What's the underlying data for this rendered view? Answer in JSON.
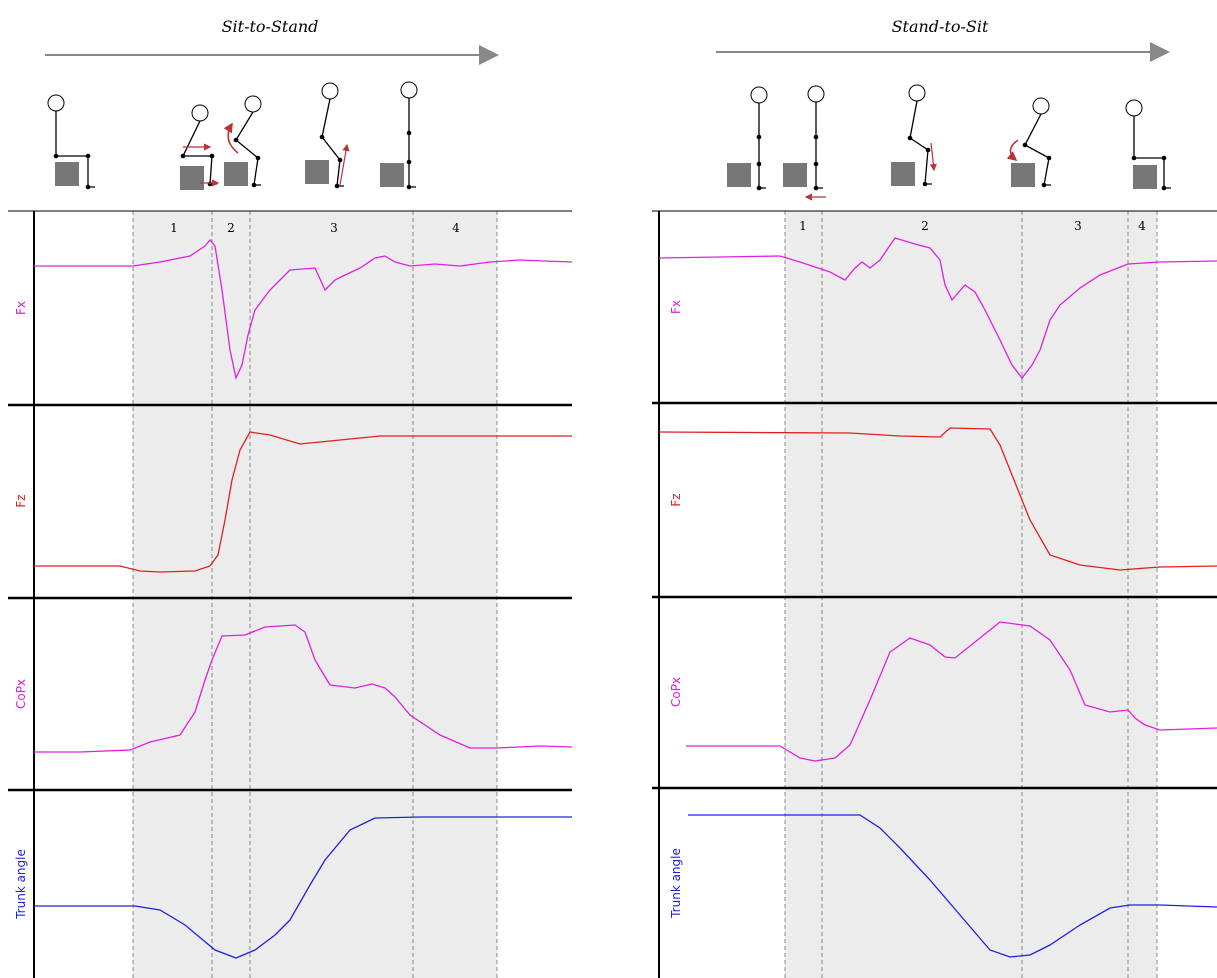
{
  "panels": [
    {
      "title": "Sit-to-Stand",
      "phases": [
        "1",
        "2",
        "3",
        "4"
      ],
      "channels": [
        "Fx",
        "Fz",
        "CoPx",
        "Trunk angle"
      ]
    },
    {
      "title": "Stand-to-Sit",
      "phases": [
        "1",
        "2",
        "3",
        "4"
      ],
      "channels": [
        "Fx",
        "Fz",
        "CoPx",
        "Trunk angle"
      ]
    }
  ]
}
